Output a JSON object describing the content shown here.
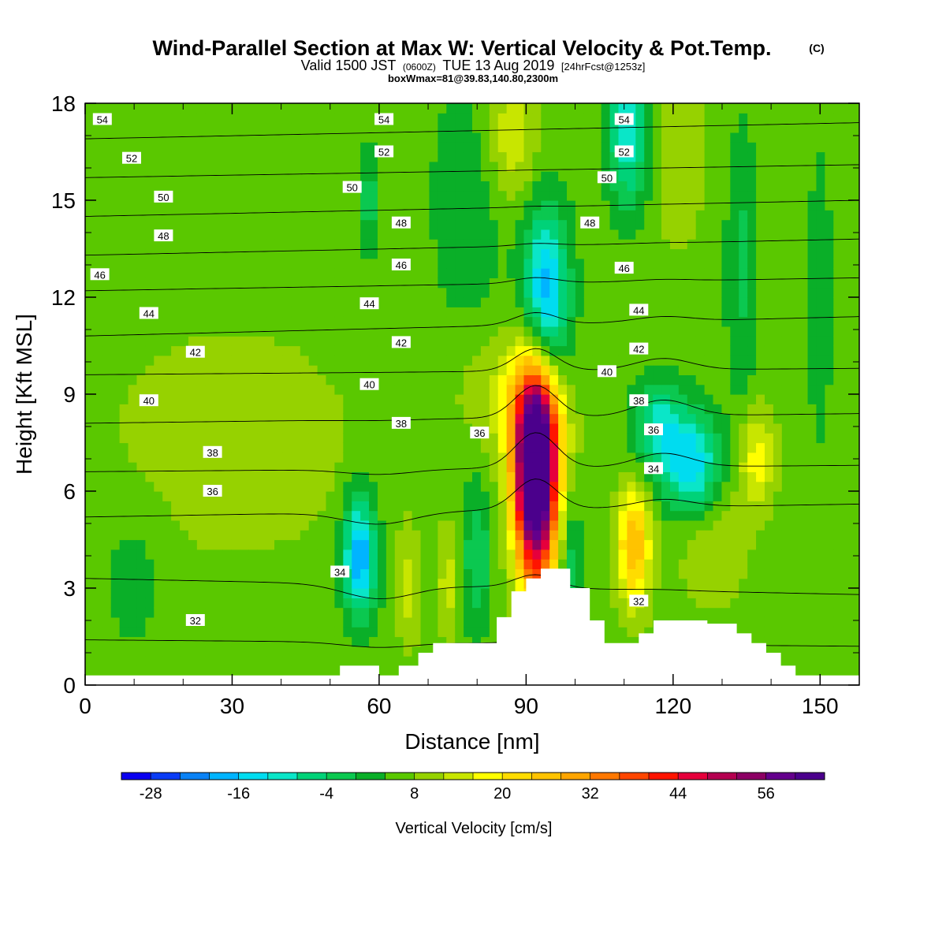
{
  "chart_data": {
    "type": "heatmap",
    "title": "Wind-Parallel Section at Max W: Vertical Velocity & Pot.Temp.",
    "title_mark": "(C)",
    "subtitle": {
      "valid": "Valid 1500 JST",
      "utc": "(0600Z)",
      "date": "TUE 13 Aug 2019",
      "fcst": "[24hrFcst@1253z]"
    },
    "subtitle2": "boxWmax=81@39.83,140.80,2300m",
    "xlabel": "Distance [nm]",
    "ylabel": "Height [Kft MSL]",
    "xlim": [
      0,
      158
    ],
    "ylim": [
      0,
      18
    ],
    "x_ticks": [
      "0",
      "30",
      "60",
      "90",
      "120",
      "150"
    ],
    "y_ticks": [
      "0",
      "3",
      "6",
      "9",
      "12",
      "15",
      "18"
    ],
    "x_tick_values": [
      0,
      30,
      60,
      90,
      120,
      150
    ],
    "y_tick_values": [
      0,
      3,
      6,
      9,
      12,
      15,
      18
    ],
    "colorbar": {
      "label": "Vertical Velocity [cm/s]",
      "tick_labels": [
        "-28",
        "-16",
        "-4",
        "8",
        "20",
        "32",
        "44",
        "56"
      ],
      "tick_values": [
        -28,
        -16,
        -4,
        8,
        20,
        32,
        44,
        56
      ],
      "min": -32,
      "max": 64,
      "step": 4,
      "colors": [
        "#0a00f0",
        "#0a3cf5",
        "#0a82f5",
        "#00b4ff",
        "#00dcf0",
        "#0ae6c8",
        "#00d278",
        "#0bc850",
        "#0aaf28",
        "#5ac800",
        "#96d200",
        "#c8e600",
        "#ffff00",
        "#ffdc00",
        "#ffc300",
        "#ffa500",
        "#ff7800",
        "#ff4600",
        "#ff1400",
        "#e6003c",
        "#b40050",
        "#8c0064",
        "#64008c",
        "#4b008c"
      ]
    },
    "theta_contours": [
      {
        "label": "32",
        "y_left": 1.4,
        "y_right": 1.2
      },
      {
        "label": "34",
        "y_left": 3.3,
        "y_right": 2.8
      },
      {
        "label": "36",
        "y_left": 5.2,
        "y_right": 5.6
      },
      {
        "label": "38",
        "y_left": 6.6,
        "y_right": 6.8
      },
      {
        "label": "40",
        "y_left": 8.1,
        "y_right": 8.4
      },
      {
        "label": "42",
        "y_left": 9.6,
        "y_right": 9.8
      },
      {
        "label": "44",
        "y_left": 10.8,
        "y_right": 11.4
      },
      {
        "label": "46",
        "y_left": 12.2,
        "y_right": 12.6
      },
      {
        "label": "48",
        "y_left": 13.3,
        "y_right": 13.8
      },
      {
        "label": "50",
        "y_left": 14.5,
        "y_right": 15.0
      },
      {
        "label": "52",
        "y_left": 15.7,
        "y_right": 16.1
      },
      {
        "label": "54",
        "y_left": 16.9,
        "y_right": 17.4
      }
    ],
    "contour_labels": [
      {
        "t": "54",
        "x": 3.5,
        "y": 17.5
      },
      {
        "t": "54",
        "x": 61,
        "y": 17.5
      },
      {
        "t": "54",
        "x": 110,
        "y": 17.5
      },
      {
        "t": "52",
        "x": 9.5,
        "y": 16.3
      },
      {
        "t": "52",
        "x": 61,
        "y": 16.5
      },
      {
        "t": "52",
        "x": 110,
        "y": 16.5
      },
      {
        "t": "50",
        "x": 16,
        "y": 15.1
      },
      {
        "t": "50",
        "x": 54.5,
        "y": 15.4
      },
      {
        "t": "50",
        "x": 106.5,
        "y": 15.7
      },
      {
        "t": "48",
        "x": 16,
        "y": 13.9
      },
      {
        "t": "48",
        "x": 64.5,
        "y": 14.3
      },
      {
        "t": "48",
        "x": 103,
        "y": 14.3
      },
      {
        "t": "46",
        "x": 3,
        "y": 12.7
      },
      {
        "t": "46",
        "x": 64.5,
        "y": 13.0
      },
      {
        "t": "46",
        "x": 110,
        "y": 12.9
      },
      {
        "t": "44",
        "x": 13,
        "y": 11.5
      },
      {
        "t": "44",
        "x": 58,
        "y": 11.8
      },
      {
        "t": "44",
        "x": 113,
        "y": 11.6
      },
      {
        "t": "42",
        "x": 22.5,
        "y": 10.3
      },
      {
        "t": "42",
        "x": 64.5,
        "y": 10.6
      },
      {
        "t": "42",
        "x": 113,
        "y": 10.4
      },
      {
        "t": "40",
        "x": 13,
        "y": 8.8
      },
      {
        "t": "40",
        "x": 58,
        "y": 9.3
      },
      {
        "t": "40",
        "x": 106.5,
        "y": 9.7
      },
      {
        "t": "38",
        "x": 26,
        "y": 7.2
      },
      {
        "t": "38",
        "x": 64.5,
        "y": 8.1
      },
      {
        "t": "38",
        "x": 113,
        "y": 8.8
      },
      {
        "t": "36",
        "x": 26,
        "y": 6.0
      },
      {
        "t": "36",
        "x": 80.5,
        "y": 7.8
      },
      {
        "t": "36",
        "x": 116,
        "y": 7.9
      },
      {
        "t": "34",
        "x": 52,
        "y": 3.5
      },
      {
        "t": "34",
        "x": 116,
        "y": 6.7
      },
      {
        "t": "32",
        "x": 22.5,
        "y": 2.0
      },
      {
        "t": "32",
        "x": 113,
        "y": 2.6
      }
    ],
    "w_field": [
      {
        "x": 92,
        "y": 6.5,
        "sx": 3.0,
        "sy": 2.3,
        "a": 72
      },
      {
        "x": 92,
        "y": 8.0,
        "sx": 4.5,
        "sy": 1.6,
        "a": 12
      },
      {
        "x": 112,
        "y": 4.3,
        "sx": 2.4,
        "sy": 1.3,
        "a": 22
      },
      {
        "x": 137,
        "y": 7.0,
        "sx": 2.6,
        "sy": 1.1,
        "a": 12
      },
      {
        "x": 56,
        "y": 4.0,
        "sx": 2.4,
        "sy": 1.3,
        "a": -26
      },
      {
        "x": 94,
        "y": 12.0,
        "sx": 3.2,
        "sy": 1.9,
        "a": -26
      },
      {
        "x": 111,
        "y": 17.2,
        "sx": 3.0,
        "sy": 1.7,
        "a": -18
      },
      {
        "x": 124,
        "y": 6.8,
        "sx": 4.0,
        "sy": 1.1,
        "a": -22
      },
      {
        "x": 117,
        "y": 8.0,
        "sx": 3.5,
        "sy": 1.0,
        "a": -16
      },
      {
        "x": 58,
        "y": 15.0,
        "sx": 1.5,
        "sy": 1.2,
        "a": -8
      },
      {
        "x": 134,
        "y": 13.0,
        "sx": 2.2,
        "sy": 3.0,
        "a": -7
      },
      {
        "x": 150,
        "y": 12.0,
        "sx": 1.6,
        "sy": 3.0,
        "a": -6
      },
      {
        "x": 78,
        "y": 15.0,
        "sx": 5.0,
        "sy": 2.5,
        "a": -6
      },
      {
        "x": 10,
        "y": 3.5,
        "sx": 5.0,
        "sy": 1.8,
        "a": -4
      },
      {
        "x": 80,
        "y": 4.0,
        "sx": 2.0,
        "sy": 1.6,
        "a": -10
      },
      {
        "x": 99,
        "y": 3.8,
        "sx": 1.6,
        "sy": 1.5,
        "a": -9
      },
      {
        "x": 30,
        "y": 7.5,
        "sx": 18.0,
        "sy": 2.5,
        "a": 5
      },
      {
        "x": 85,
        "y": 9.0,
        "sx": 6.0,
        "sy": 1.2,
        "a": 6
      },
      {
        "x": 87,
        "y": 17.0,
        "sx": 4.0,
        "sy": 1.5,
        "a": 9
      },
      {
        "x": 121,
        "y": 16.5,
        "sx": 4.0,
        "sy": 2.0,
        "a": 6
      },
      {
        "x": 128,
        "y": 4.5,
        "sx": 5.0,
        "sy": 1.5,
        "a": 6
      },
      {
        "x": 66,
        "y": 3.0,
        "sx": 1.6,
        "sy": 1.4,
        "a": 7
      },
      {
        "x": 74,
        "y": 3.2,
        "sx": 1.5,
        "sy": 1.2,
        "a": 8
      }
    ],
    "terrain": [
      [
        0,
        0.3
      ],
      [
        52,
        0.3
      ],
      [
        52,
        0.6
      ],
      [
        60,
        0.6
      ],
      [
        60,
        0.3
      ],
      [
        64,
        0.3
      ],
      [
        64,
        0.6
      ],
      [
        68,
        0.6
      ],
      [
        68,
        1.0
      ],
      [
        71,
        1.0
      ],
      [
        71,
        1.3
      ],
      [
        84,
        1.3
      ],
      [
        84,
        2.1
      ],
      [
        87,
        2.1
      ],
      [
        87,
        2.9
      ],
      [
        90,
        2.9
      ],
      [
        90,
        3.3
      ],
      [
        93,
        3.3
      ],
      [
        93,
        3.6
      ],
      [
        99,
        3.6
      ],
      [
        99,
        3.0
      ],
      [
        103,
        3.0
      ],
      [
        103,
        2.0
      ],
      [
        106,
        2.0
      ],
      [
        106,
        1.3
      ],
      [
        113,
        1.3
      ],
      [
        113,
        1.6
      ],
      [
        116,
        1.6
      ],
      [
        116,
        2.0
      ],
      [
        127,
        2.0
      ],
      [
        127,
        1.9
      ],
      [
        133,
        1.9
      ],
      [
        133,
        1.6
      ],
      [
        136,
        1.6
      ],
      [
        136,
        1.3
      ],
      [
        139,
        1.3
      ],
      [
        139,
        1.0
      ],
      [
        142,
        1.0
      ],
      [
        142,
        0.6
      ],
      [
        145,
        0.6
      ],
      [
        145,
        0.3
      ],
      [
        158,
        0.3
      ]
    ]
  }
}
